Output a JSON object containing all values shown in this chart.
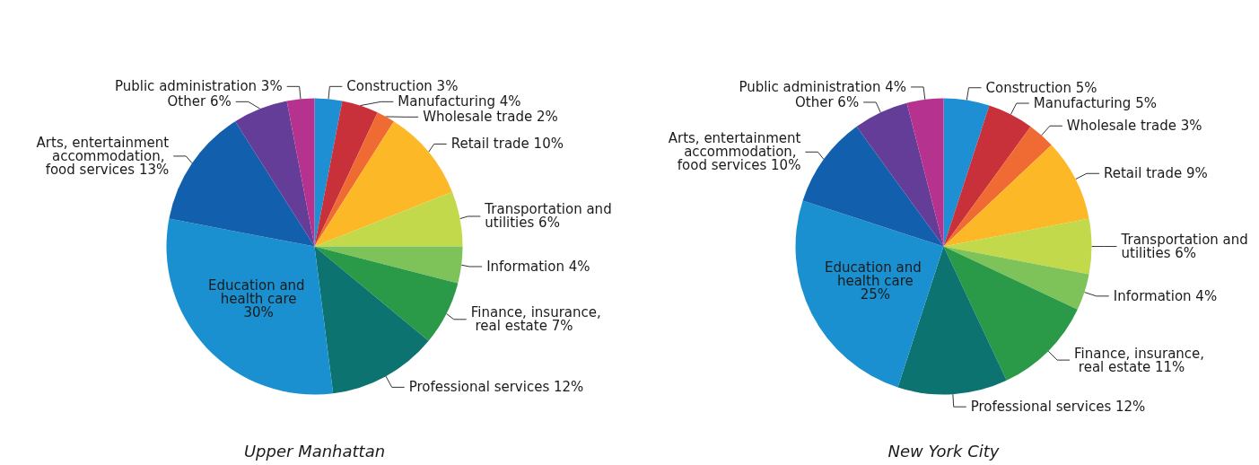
{
  "chart_data": [
    {
      "type": "pie",
      "title": "Upper Manhattan",
      "categories": [
        "Construction",
        "Manufacturing",
        "Wholesale trade",
        "Retail trade",
        "Transportation and utilities",
        "Information",
        "Finance, insurance, real estate",
        "Professional services",
        "Education and health care",
        "Arts, entertainment accommodation, food services",
        "Other",
        "Public administration"
      ],
      "values": [
        3,
        4,
        2,
        10,
        6,
        4,
        7,
        12,
        30,
        13,
        6,
        3
      ],
      "value_labels": [
        "3%",
        "4%",
        "2%",
        "10%",
        "6%",
        "4%",
        "7%",
        "12%",
        "30%",
        "13%",
        "6%",
        "3%"
      ],
      "colors": [
        "#1f8fd4",
        "#c8303a",
        "#f06a34",
        "#fdb827",
        "#c1d94a",
        "#7dc35a",
        "#2b9a48",
        "#0c7370",
        "#1a90d0",
        "#1260ad",
        "#633d98",
        "#b5338e"
      ]
    },
    {
      "type": "pie",
      "title": "New York City",
      "categories": [
        "Construction",
        "Manufacturing",
        "Wholesale trade",
        "Retail trade",
        "Transportation and utilities",
        "Information",
        "Finance, insurance, real estate",
        "Professional services",
        "Education and health care",
        "Arts, entertainment accommodation, food services",
        "Other",
        "Public administration"
      ],
      "values": [
        5,
        5,
        3,
        9,
        6,
        4,
        11,
        12,
        25,
        10,
        6,
        4
      ],
      "value_labels": [
        "5%",
        "5%",
        "3%",
        "9%",
        "6%",
        "4%",
        "11%",
        "12%",
        "25%",
        "10%",
        "6%",
        "4%"
      ],
      "colors": [
        "#1f8fd4",
        "#c8303a",
        "#f06a34",
        "#fdb827",
        "#c1d94a",
        "#7dc35a",
        "#2b9a48",
        "#0c7370",
        "#1a90d0",
        "#1260ad",
        "#633d98",
        "#b5338e"
      ]
    }
  ]
}
